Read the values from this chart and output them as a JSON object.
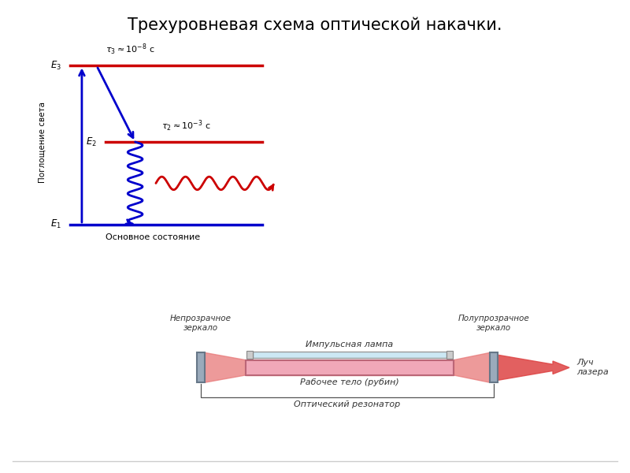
{
  "title": "Трехуровневая схема оптической накачки.",
  "title_fontsize": 15,
  "bg_color": "#ffffff",
  "top_panel_bg": "#f5d0d0",
  "bottom_panel_bg": "#f5f0e0",
  "blue": "#0000cc",
  "red": "#cc0000",
  "E1": 0.12,
  "E2": 0.5,
  "E3": 0.85,
  "mirror_left_label": "Непрозрачное\nзеркало",
  "mirror_right_label": "Полупрозрачное\nзеркало",
  "lamp_label": "Импульсная лампа",
  "ruby_label": "Рабочее тело (рубин)",
  "resonator_label": "Оптический резонатор",
  "laser_beam_label": "Луч\nлазера",
  "ground_state_text": "Основное состояние",
  "y_axis_label": "Поглощение света"
}
